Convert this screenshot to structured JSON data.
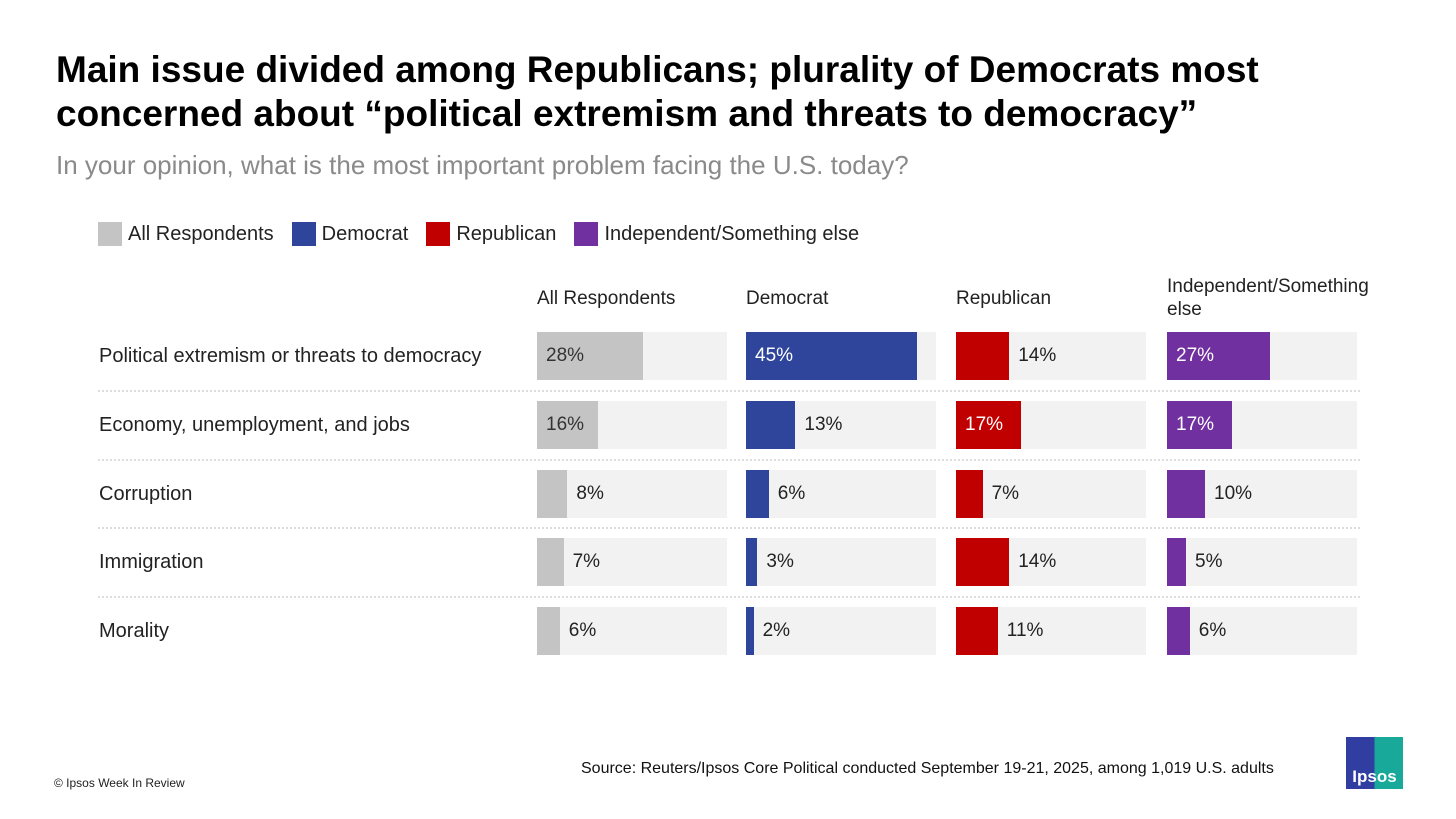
{
  "title": "Main issue divided among Republicans; plurality of Democrats most concerned about “political extremism and threats to democracy”",
  "subtitle": "In your opinion, what is the most important problem facing the U.S. today?",
  "source": "Source: Reuters/Ipsos Core Political conducted September 19-21, 2025, among 1,019 U.S. adults",
  "copyright": "© Ipsos Week In Review",
  "logo_text": "Ipsos",
  "chart_data": {
    "type": "bar",
    "title": "Main issue divided among Republicans; plurality of Democrats most concerned about “political extremism and threats to democracy”",
    "xlim": [
      0,
      50
    ],
    "legend_position": "top-left",
    "categories": [
      "Political extremism or threats to democracy",
      "Economy, unemployment, and jobs",
      "Corruption",
      "Immigration",
      "Morality"
    ],
    "series": [
      {
        "name": "All Respondents",
        "header": "All Respondents",
        "color": "#c4c4c4",
        "text_color": "#333333",
        "values": [
          28,
          16,
          8,
          7,
          6
        ]
      },
      {
        "name": "Democrat",
        "header": "Democrat",
        "color": "#2e459b",
        "text_color": "#ffffff",
        "values": [
          45,
          13,
          6,
          3,
          2
        ]
      },
      {
        "name": "Republican",
        "header": "Republican",
        "color": "#c00000",
        "text_color": "#ffffff",
        "values": [
          14,
          17,
          7,
          14,
          11
        ]
      },
      {
        "name": "Independent/Something else",
        "header": "Independent/Something else",
        "color": "#7030a0",
        "text_color": "#ffffff",
        "values": [
          27,
          17,
          10,
          5,
          6
        ]
      }
    ]
  }
}
